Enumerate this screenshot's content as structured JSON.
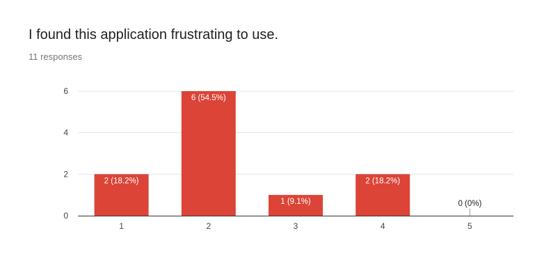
{
  "question": {
    "title": "I found this application frustrating to use.",
    "responses": "11 responses"
  },
  "colors": {
    "bar": "#db4437",
    "grid": "#e6e6e6",
    "axis": "#333333",
    "tick_text": "#444444",
    "bar_label_inside": "#ffffff",
    "bar_label_outside": "#222222"
  },
  "chart_data": {
    "type": "bar",
    "categories": [
      "1",
      "2",
      "3",
      "4",
      "5"
    ],
    "values": [
      2,
      6,
      1,
      2,
      0
    ],
    "labels": [
      "2 (18.2%)",
      "6 (54.5%)",
      "1 (9.1%)",
      "2 (18.2%)",
      "0 (0%)"
    ],
    "ylim": [
      0,
      6
    ],
    "yticks": [
      0,
      2,
      4,
      6
    ],
    "grid": true,
    "xlabel": "",
    "ylabel": ""
  }
}
